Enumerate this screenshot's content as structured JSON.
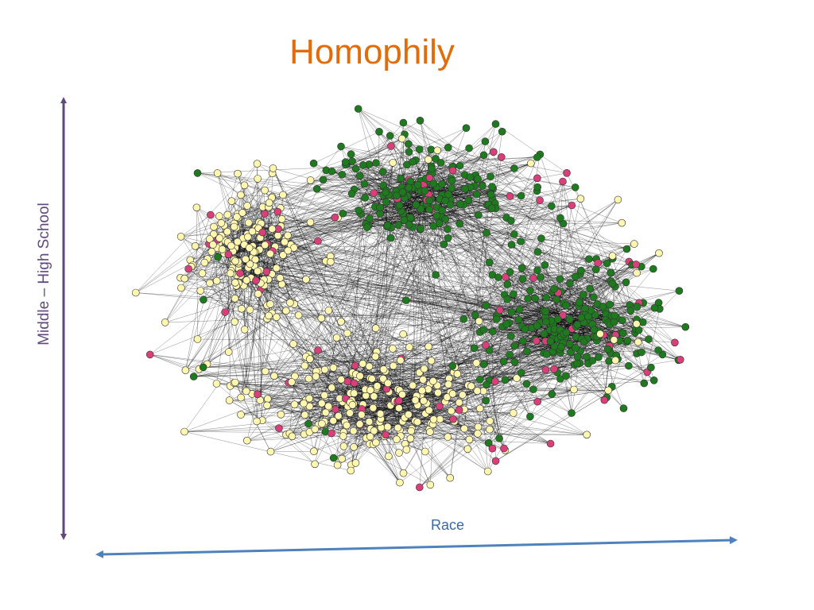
{
  "title": "Homophily",
  "axes": {
    "y_label": "Middle – High School",
    "x_label": "Race"
  }
}
